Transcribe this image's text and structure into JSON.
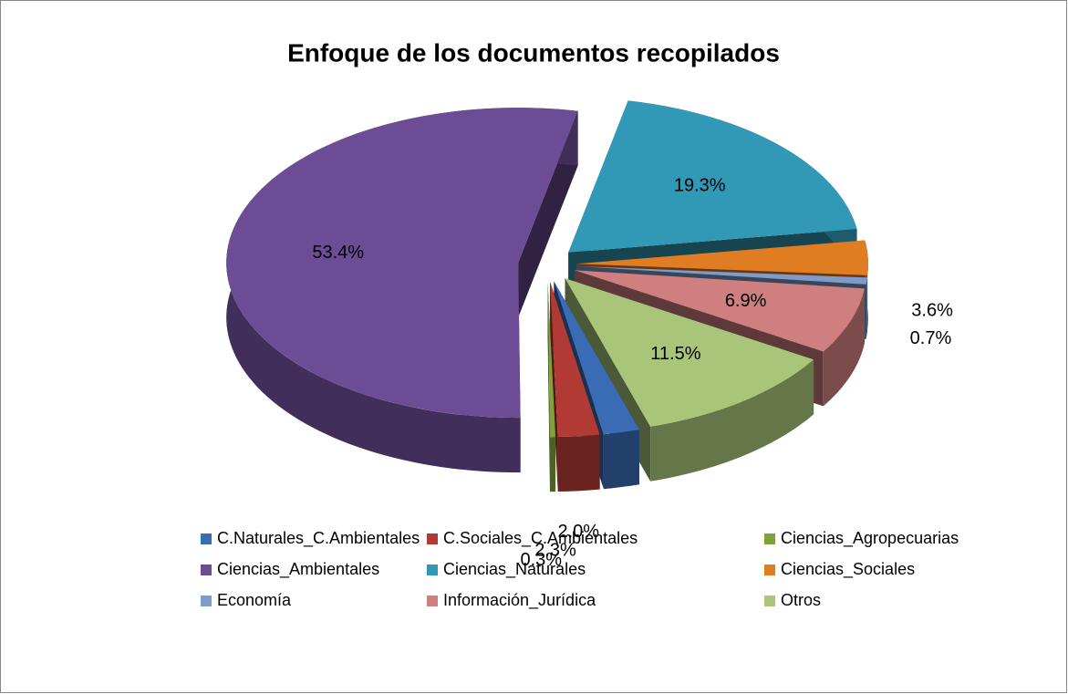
{
  "chart_data": {
    "type": "pie",
    "title": "Enfoque de los documentos recopilados",
    "categories": [
      "C.Naturales_C.Ambientales",
      "C.Sociales_C.Ambientales",
      "Ciencias_Agropecuarias",
      "Ciencias_Ambientales",
      "Ciencias_Naturales",
      "Ciencias_Sociales",
      "Economía",
      "Información_Jurídica",
      "Otros"
    ],
    "values": [
      2.0,
      2.3,
      0.3,
      53.4,
      19.3,
      3.6,
      0.7,
      6.9,
      11.5
    ],
    "value_labels": [
      "2.0%",
      "2.3%",
      "0.3%",
      "53.4%",
      "19.3%",
      "3.6%",
      "0.7%",
      "6.9%",
      "11.5%"
    ],
    "colors": [
      "#3a6bb5",
      "#b23a35",
      "#7fa33a",
      "#6d4c96",
      "#3198b5",
      "#e07d22",
      "#7f9bc8",
      "#cf7f7f",
      "#a9c57a"
    ],
    "legend": "bottom"
  }
}
